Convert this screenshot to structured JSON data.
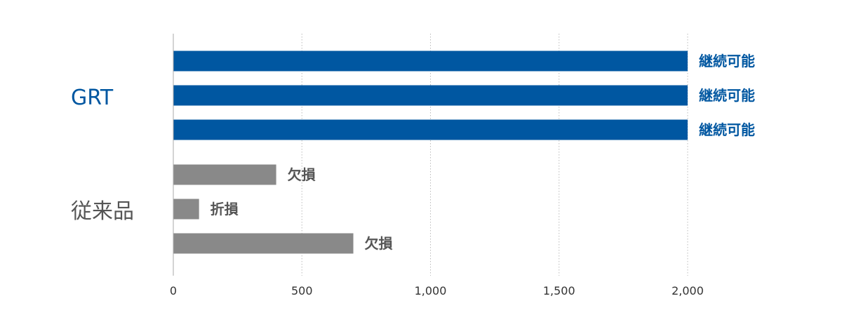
{
  "chart_data": {
    "type": "bar",
    "orientation": "horizontal",
    "title": "",
    "xlabel": "",
    "ylabel": "",
    "xlim": [
      0,
      2000
    ],
    "xticks": [
      0,
      500,
      1000,
      1500,
      2000
    ],
    "xtick_labels": [
      "0",
      "500",
      "1,000",
      "1,500",
      "2,000"
    ],
    "grid": "vertical dotted",
    "legend": "none",
    "groups": [
      {
        "label": "GRT",
        "color": "#0057A1",
        "bars": [
          {
            "value": 2000,
            "label": "継続可能"
          },
          {
            "value": 2000,
            "label": "継続可能"
          },
          {
            "value": 2000,
            "label": "継続可能"
          }
        ]
      },
      {
        "label": "従来品",
        "color": "#898989",
        "bars": [
          {
            "value": 400,
            "label": "欠損"
          },
          {
            "value": 100,
            "label": "折損"
          },
          {
            "value": 700,
            "label": "欠損"
          }
        ]
      }
    ],
    "colors": {
      "grt_bar": "#0057A1",
      "grt_text": "#0057A1",
      "legacy_bar": "#898989",
      "legacy_text": "#555555",
      "axis": "#aaaaaa",
      "grid": "#bbbbbb"
    }
  }
}
